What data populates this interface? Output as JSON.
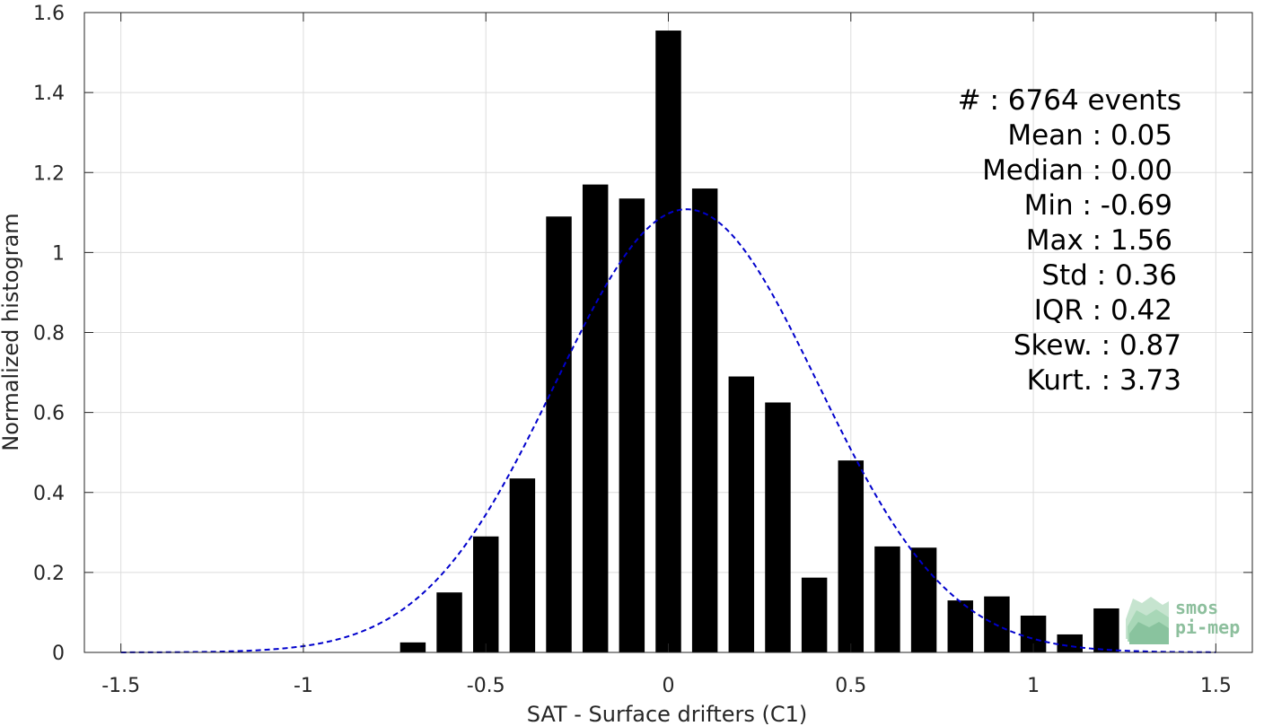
{
  "chart_data": {
    "type": "bar",
    "xlabel": "SAT - Surface drifters (C1)",
    "ylabel": "Normalized histogram",
    "xlim": [
      -1.6,
      1.6
    ],
    "ylim": [
      0,
      1.6
    ],
    "x_ticks": [
      -1.5,
      -1,
      -0.5,
      0,
      0.5,
      1,
      1.5
    ],
    "x_tick_labels": [
      "-1.5",
      "-1",
      "-0.5",
      "0",
      "0.5",
      "1",
      "1.5"
    ],
    "y_ticks": [
      0,
      0.2,
      0.4,
      0.6,
      0.8,
      1,
      1.2,
      1.4,
      1.6
    ],
    "y_tick_labels": [
      "0",
      "0.2",
      "0.4",
      "0.6",
      "0.8",
      "1",
      "1.2",
      "1.4",
      "1.6"
    ],
    "grid": true,
    "bar_color": "#000000",
    "bar_width": 0.07,
    "bars": {
      "x": [
        -0.7,
        -0.6,
        -0.5,
        -0.4,
        -0.3,
        -0.2,
        -0.1,
        0.0,
        0.1,
        0.2,
        0.3,
        0.4,
        0.5,
        0.6,
        0.7,
        0.8,
        0.9,
        1.0,
        1.1,
        1.2
      ],
      "values": [
        0.025,
        0.15,
        0.29,
        0.435,
        1.09,
        1.17,
        1.135,
        1.555,
        1.16,
        0.69,
        0.625,
        0.187,
        0.48,
        0.265,
        0.262,
        0.13,
        0.14,
        0.092,
        0.045,
        0.11
      ]
    },
    "fit_curve": {
      "style": "dashed",
      "color": "#0000cc",
      "type": "gaussian",
      "mean": 0.05,
      "std": 0.36,
      "x_range": [
        -1.5,
        1.5
      ]
    },
    "annotations": [
      "#  : 6764 events",
      "Mean : 0.05",
      "Median : 0.00",
      "Min : -0.69",
      "Max : 1.56",
      "Std : 0.36",
      "IQR : 0.42",
      "Skew. : 0.87",
      "Kurt. : 3.73"
    ]
  },
  "logo": {
    "line1": "smos",
    "line2": "pi-mep"
  }
}
